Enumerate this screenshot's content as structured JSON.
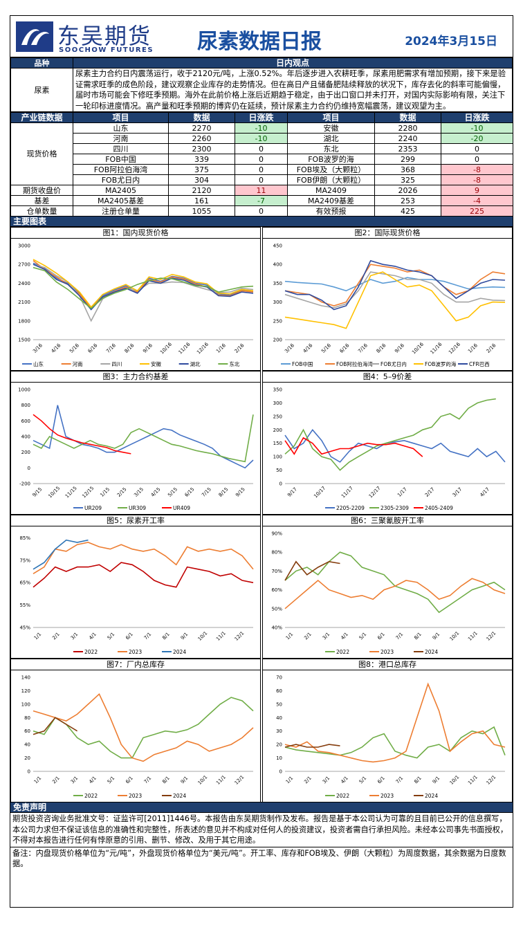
{
  "header": {
    "logo_cn": "东吴期货",
    "logo_en": "SOOCHOW FUTURES",
    "title": "尿素数据日报",
    "date": "2024年3月15日"
  },
  "view": {
    "col1": "品种",
    "col2": "日内观点",
    "name": "尿素",
    "text": "尿素主力合约日内震荡运行，收于2120元/吨，上涨0.52%。年后逐步进入农耕旺季，尿素用肥需求有增加预期，接下来是验证需求旺季的成色阶段，建议观察企业库存的走势情况。但在高日产且储备肥陆续释放的状况下，库存去化的斜率可能偏慢，届时市场可能会下修旺季预期。海外在此前价格上涨后近期趋于稳定，由于出口窗口并未打开，对国内实际影响有限，关注下一轮印标进度情况。高产量和旺季预期的博弈仍在延续，预计尿素主力合约仍维持宽幅震荡，建议观望为主。"
  },
  "chain": {
    "headers": [
      "产业链数据",
      "项目",
      "数据",
      "日涨跌",
      "项目",
      "数据",
      "日涨跌"
    ],
    "spot_label": "现货价格",
    "spot_rows": [
      {
        "a": "山东",
        "av": "2270",
        "ac": "-10",
        "acls": "green",
        "b": "安徽",
        "bv": "2280",
        "bc": "-10",
        "bcls": "green"
      },
      {
        "a": "河南",
        "av": "2260",
        "ac": "-10",
        "acls": "green",
        "b": "湖北",
        "bv": "2240",
        "bc": "-20",
        "bcls": "green"
      },
      {
        "a": "四川",
        "av": "2300",
        "ac": "0",
        "acls": "",
        "b": "东北",
        "bv": "2353",
        "bc": "0",
        "bcls": ""
      },
      {
        "a": "FOB中国",
        "av": "339",
        "ac": "0",
        "acls": "",
        "b": "FOB波罗的海",
        "bv": "299",
        "bc": "0",
        "bcls": ""
      },
      {
        "a": "FOB阿拉伯海湾",
        "av": "375",
        "ac": "0",
        "acls": "",
        "b": "FOB埃及（大颗粒）",
        "bv": "368",
        "bc": "-8",
        "bcls": "red"
      },
      {
        "a": "FOB尤日内",
        "av": "304",
        "ac": "0",
        "acls": "",
        "b": "FOB伊朗（大颗粒）",
        "bv": "325",
        "bc": "-8",
        "bcls": "red"
      }
    ],
    "other_rows": [
      {
        "l": "期货收盘价",
        "a": "MA2405",
        "av": "2120",
        "ac": "11",
        "acls": "red",
        "b": "MA2409",
        "bv": "2026",
        "bc": "9",
        "bcls": "red"
      },
      {
        "l": "基差",
        "a": "MA2405基差",
        "av": "161",
        "ac": "-7",
        "acls": "green",
        "b": "MA2409基差",
        "bv": "253",
        "bc": "-4",
        "bcls": "red"
      },
      {
        "l": "仓单数量",
        "a": "注册仓单量",
        "av": "1055",
        "ac": "0",
        "acls": "",
        "b": "有效预报",
        "bv": "425",
        "bc": "225",
        "bcls": "red"
      }
    ]
  },
  "charts_title": "主要图表",
  "chart_data": [
    {
      "type": "line",
      "title": "图1：国内现货价格",
      "yticks": [
        "3000",
        "2700",
        "2400",
        "2100",
        "1800",
        "1500"
      ],
      "ylim": [
        1500,
        3000
      ],
      "xticks": [
        "3/16",
        "4/16",
        "5/16",
        "6/16",
        "7/16",
        "8/16",
        "9/16",
        "10/16",
        "11/16",
        "12/16",
        "1/16",
        "2/16"
      ],
      "series": [
        {
          "name": "山东",
          "color": "#4472c4",
          "values": [
            2720,
            2640,
            2480,
            2400,
            2250,
            2020,
            2200,
            2290,
            2360,
            2250,
            2480,
            2430,
            2510,
            2480,
            2400,
            2370,
            2230,
            2210,
            2290,
            2270
          ]
        },
        {
          "name": "河南",
          "color": "#ed7d31",
          "values": [
            2760,
            2620,
            2500,
            2380,
            2230,
            2000,
            2180,
            2270,
            2340,
            2260,
            2460,
            2420,
            2500,
            2470,
            2390,
            2340,
            2210,
            2200,
            2280,
            2260
          ]
        },
        {
          "name": "四川",
          "color": "#a5a5a5",
          "values": [
            2700,
            2650,
            2520,
            2420,
            2200,
            1800,
            2150,
            2260,
            2320,
            2280,
            2400,
            2400,
            2420,
            2410,
            2350,
            2300,
            2250,
            2260,
            2320,
            2300
          ]
        },
        {
          "name": "安徽",
          "color": "#ffc000",
          "values": [
            2780,
            2680,
            2560,
            2420,
            2260,
            2020,
            2220,
            2310,
            2380,
            2280,
            2500,
            2460,
            2540,
            2500,
            2420,
            2390,
            2240,
            2230,
            2300,
            2280
          ]
        },
        {
          "name": "湖北",
          "color": "#2e4a9e",
          "values": [
            2700,
            2620,
            2460,
            2380,
            2200,
            1980,
            2180,
            2260,
            2320,
            2240,
            2440,
            2400,
            2480,
            2450,
            2370,
            2340,
            2200,
            2190,
            2260,
            2240
          ]
        },
        {
          "name": "东北",
          "color": "#70ad47",
          "values": [
            2650,
            2600,
            2420,
            2300,
            2150,
            2000,
            2160,
            2240,
            2300,
            2380,
            2440,
            2480,
            2470,
            2420,
            2360,
            2350,
            2260,
            2300,
            2340,
            2353
          ]
        }
      ]
    },
    {
      "type": "line",
      "title": "图2：国际现货价格",
      "yticks": [
        "450",
        "400",
        "350",
        "300",
        "250",
        "200"
      ],
      "ylim": [
        200,
        450
      ],
      "xticks": [
        "3/16",
        "4/16",
        "5/16",
        "6/16",
        "7/16",
        "8/16",
        "9/16",
        "10/16",
        "11/16",
        "12/16",
        "1/16",
        "2/16"
      ],
      "series": [
        {
          "name": "FOB中国",
          "color": "#5b9bd5",
          "values": [
            355,
            352,
            350,
            348,
            340,
            330,
            345,
            360,
            350,
            355,
            365,
            360,
            360,
            355,
            345,
            335,
            338,
            340,
            339
          ]
        },
        {
          "name": "FOB阿拉伯海湾",
          "color": "#ed7d31",
          "values": [
            330,
            325,
            320,
            300,
            290,
            300,
            350,
            400,
            395,
            390,
            380,
            385,
            370,
            340,
            320,
            330,
            360,
            380,
            375
          ]
        },
        {
          "name": "FOB尤日内",
          "color": "#a5a5a5",
          "values": [
            320,
            310,
            300,
            290,
            285,
            295,
            330,
            380,
            375,
            370,
            360,
            360,
            350,
            320,
            300,
            300,
            310,
            305,
            304
          ]
        },
        {
          "name": "FOB波罗的海",
          "color": "#ffc000",
          "values": [
            260,
            255,
            250,
            245,
            240,
            230,
            300,
            370,
            380,
            360,
            340,
            345,
            330,
            290,
            250,
            260,
            290,
            300,
            299
          ]
        },
        {
          "name": "CFR巴西",
          "color": "#2e4a9e",
          "values": [
            330,
            320,
            320,
            305,
            280,
            290,
            340,
            410,
            400,
            395,
            385,
            380,
            370,
            340,
            310,
            330,
            350,
            360,
            358
          ]
        }
      ]
    },
    {
      "type": "line",
      "title": "图3：主力合约基差",
      "yticks": [
        "1000",
        "800",
        "600",
        "400",
        "200",
        "0",
        "-200"
      ],
      "ylim": [
        -200,
        1000
      ],
      "xticks": [
        "9/15",
        "10/15",
        "11/15",
        "12/15",
        "1/15",
        "2/15",
        "3/15",
        "4/15",
        "5/15",
        "6/15",
        "7/15",
        "8/15",
        "9/15"
      ],
      "series": [
        {
          "name": "UR209",
          "color": "#4472c4",
          "values": [
            350,
            300,
            250,
            800,
            400,
            350,
            300,
            280,
            250,
            200,
            200,
            250,
            300,
            350,
            400,
            450,
            500,
            480,
            420,
            380,
            340,
            300,
            250,
            150,
            100,
            50,
            0,
            100
          ]
        },
        {
          "name": "UR309",
          "color": "#70ad47",
          "values": [
            300,
            250,
            400,
            350,
            300,
            250,
            300,
            350,
            300,
            280,
            250,
            300,
            450,
            500,
            450,
            400,
            350,
            300,
            280,
            250,
            220,
            200,
            180,
            150,
            120,
            100,
            80,
            680
          ]
        },
        {
          "name": "UR409",
          "color": "#ff0000",
          "values": [
            680,
            600,
            500,
            420,
            380,
            350,
            320,
            300,
            280,
            260,
            220,
            200,
            180
          ]
        }
      ]
    },
    {
      "type": "line",
      "title": "图4：5–9价差",
      "yticks": [
        "350",
        "300",
        "250",
        "200",
        "150",
        "100",
        "50",
        "0"
      ],
      "ylim": [
        0,
        350
      ],
      "xticks": [
        "9/17",
        "10/17",
        "11/17",
        "12/17",
        "1/17",
        "2/17",
        "3/17",
        "4/17"
      ],
      "series": [
        {
          "name": "2205-2209",
          "color": "#4472c4",
          "values": [
            180,
            130,
            150,
            200,
            160,
            100,
            80,
            120,
            150,
            140,
            130,
            150,
            155,
            160,
            150,
            140,
            130,
            150,
            120,
            110,
            100,
            130,
            100,
            120,
            80
          ]
        },
        {
          "name": "2305-2309",
          "color": "#70ad47",
          "values": [
            110,
            140,
            200,
            130,
            100,
            90,
            50,
            80,
            100,
            120,
            140,
            150,
            160,
            170,
            180,
            200,
            210,
            250,
            260,
            240,
            280,
            300,
            310,
            315
          ]
        },
        {
          "name": "2405-2409",
          "color": "#ff0000",
          "values": [
            160,
            110,
            170,
            150,
            110,
            120,
            130,
            130,
            140,
            150,
            145,
            145,
            150,
            140,
            130,
            100
          ]
        }
      ]
    },
    {
      "type": "line",
      "title": "图5：尿素开工率",
      "yticks": [
        "85%",
        "75%",
        "65%",
        "55%",
        "45%"
      ],
      "ylim": [
        45,
        87
      ],
      "xticks": [
        "1/1",
        "2/1",
        "3/1",
        "4/1",
        "5/1",
        "6/1",
        "7/1",
        "8/1",
        "9/1",
        "10/1",
        "11/1",
        "12/1"
      ],
      "series": [
        {
          "name": "2022",
          "color": "#c00000",
          "values": [
            63,
            67,
            72,
            70,
            72,
            72,
            73,
            70,
            74,
            73,
            70,
            66,
            64,
            63,
            72,
            71,
            70,
            68,
            69,
            66,
            65
          ]
        },
        {
          "name": "2023",
          "color": "#ed7d31",
          "values": [
            69,
            72,
            80,
            79,
            82,
            83,
            81,
            80,
            82,
            80,
            79,
            80,
            77,
            73,
            81,
            79,
            80,
            79,
            80,
            77,
            71
          ]
        },
        {
          "name": "2024",
          "color": "#2e75b6",
          "values": [
            71,
            74,
            80,
            84,
            83,
            84
          ]
        }
      ]
    },
    {
      "type": "line",
      "title": "图6：三聚氰胺开工率",
      "yticks": [
        "90%",
        "80%",
        "70%",
        "60%",
        "50%",
        "40%"
      ],
      "ylim": [
        40,
        90
      ],
      "xticks": [
        "1/1",
        "2/1",
        "3/1",
        "4/1",
        "5/1",
        "6/1",
        "7/1",
        "8/1",
        "9/1",
        "10/1",
        "11/1",
        "12/1"
      ],
      "series": [
        {
          "name": "2022",
          "color": "#70ad47",
          "values": [
            65,
            70,
            72,
            68,
            75,
            80,
            78,
            72,
            70,
            68,
            62,
            60,
            58,
            55,
            48,
            52,
            56,
            60,
            62,
            64,
            60
          ]
        },
        {
          "name": "2023",
          "color": "#ed7d31",
          "values": [
            50,
            55,
            60,
            65,
            60,
            58,
            56,
            57,
            55,
            60,
            62,
            65,
            64,
            60,
            55,
            57,
            62,
            66,
            64,
            60,
            58
          ]
        },
        {
          "name": "2024",
          "color": "#843c0c",
          "values": [
            65,
            75,
            68,
            72,
            75,
            74
          ]
        }
      ]
    },
    {
      "type": "line",
      "title": "图7：厂内总库存",
      "yticks": [
        "140",
        "120",
        "100",
        "80",
        "60",
        "40",
        "20",
        "0"
      ],
      "ylim": [
        0,
        140
      ],
      "xticks": [
        "1/1",
        "2/1",
        "3/1",
        "4/1",
        "5/1",
        "6/1",
        "7/1",
        "8/1",
        "9/1",
        "10/1",
        "11/1",
        "12/1"
      ],
      "series": [
        {
          "name": "2022",
          "color": "#70ad47",
          "values": [
            60,
            55,
            80,
            70,
            50,
            40,
            45,
            30,
            20,
            20,
            50,
            55,
            60,
            58,
            62,
            70,
            85,
            100,
            110,
            105,
            90
          ]
        },
        {
          "name": "2023",
          "color": "#ed7d31",
          "values": [
            90,
            85,
            80,
            75,
            85,
            100,
            115,
            80,
            40,
            20,
            15,
            25,
            30,
            35,
            45,
            40,
            30,
            35,
            40,
            50,
            65
          ]
        },
        {
          "name": "2024",
          "color": "#843c0c",
          "values": [
            55,
            60,
            80,
            70,
            60
          ]
        }
      ]
    },
    {
      "type": "line",
      "title": "图8：港口总库存",
      "yticks": [
        "70",
        "60",
        "50",
        "40",
        "30",
        "20",
        "10",
        "0"
      ],
      "ylim": [
        0,
        70
      ],
      "xticks": [
        "1/1",
        "2/1",
        "3/1",
        "4/1",
        "5/1",
        "6/1",
        "7/1",
        "8/1",
        "9/1",
        "10/1",
        "11/1",
        "12/1"
      ],
      "series": [
        {
          "name": "2022",
          "color": "#70ad47",
          "values": [
            18,
            16,
            15,
            14,
            13,
            12,
            14,
            18,
            25,
            28,
            15,
            12,
            10,
            18,
            20,
            15,
            25,
            30,
            28,
            33,
            12
          ]
        },
        {
          "name": "2023",
          "color": "#ed7d31",
          "values": [
            20,
            18,
            22,
            15,
            14,
            12,
            10,
            8,
            7,
            8,
            10,
            15,
            40,
            65,
            45,
            15,
            22,
            28,
            30,
            20,
            18
          ]
        },
        {
          "name": "2024",
          "color": "#843c0c",
          "values": [
            18,
            20,
            18,
            18,
            20,
            19
          ]
        }
      ]
    }
  ],
  "disclaimer": {
    "title": "免责声明",
    "text": "期货投资咨询业务批准文号：证监许可[2011]1446号。本报告由东吴期货制作及发布。报告是基于本公司认为可靠的且目前已公开的信息撰写，本公司力求但不保证该信息的准确性和完整性，所表述的意见并不构成对任何人的投资建议，投资者需自行承担风险。未经本公司事先书面授权，不得对本报告进行任何有悖原意的引用、删节、修改、及用于其它用途。",
    "note": "备注：内盘现货价格单位为“元/吨”，外盘现货价格单位为“美元/吨”。开工率、库存和FOB埃及、伊朗（大颗粒）为周度数据，其余数据为日度数据。"
  }
}
